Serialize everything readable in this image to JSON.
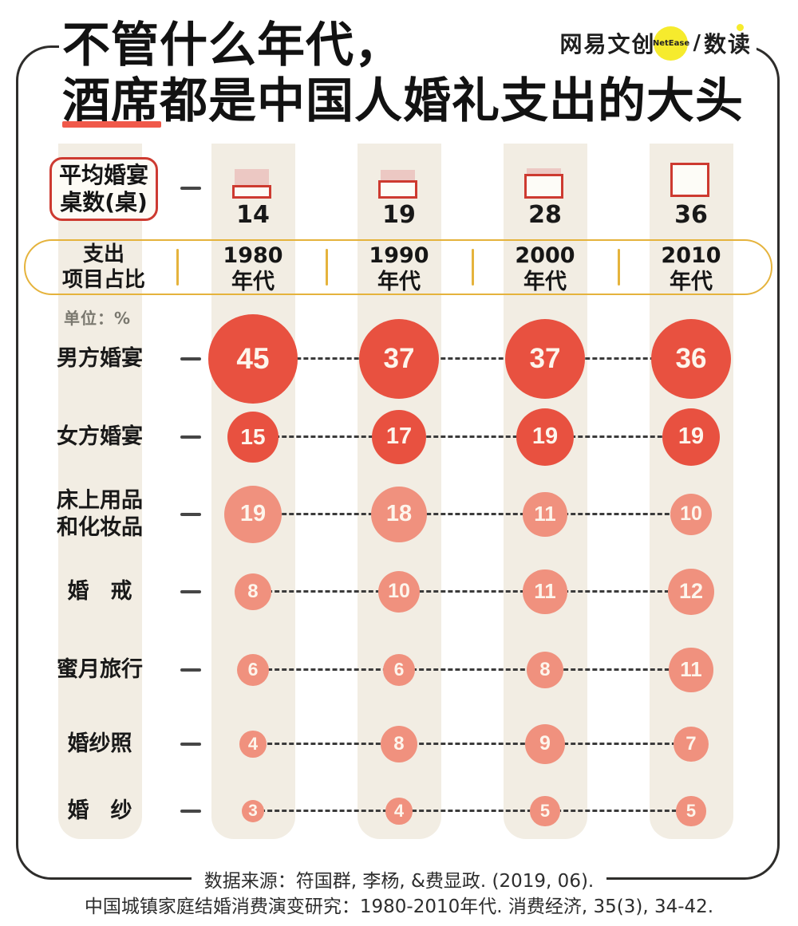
{
  "colors": {
    "page_bg": "#ffffff",
    "band": "#f2ede3",
    "frame": "#2e2d2b",
    "title_text": "#121212",
    "title_underline": "#f0594a",
    "bubble_red": "#e85140",
    "bubble_salmon": "#f0917e",
    "bubble_text": "#fdf5ec",
    "gold": "#e5b33c",
    "box_red": "#cd3a30",
    "icon_pink": "#ecc8c3",
    "logo_yellow": "#f6eb2d",
    "tick": "#464646",
    "unit_text": "#7a786f",
    "source_text": "#2d2d2d"
  },
  "page": {
    "title_line1": "不管什么年代，",
    "title_line2": "酒席都是中国人婚礼支出的大头",
    "underlined_text": "酒席",
    "logo": {
      "brand": "网易文创",
      "badge": "NetEase",
      "divider": "/",
      "product": "数读"
    },
    "source_line1": "数据来源：符国群, 李杨, &费显政. (2019, 06).",
    "source_line2": "中国城镇家庭结婚消费演变研究：1980-2010年代. 消费经济, 35(3), 34-42."
  },
  "chart_data": {
    "type": "bubble",
    "title": "不管什么年代，酒席都是中国人婚礼支出的大头",
    "unit_label": "单位：%",
    "unit": "%",
    "categories": [
      "1980年代",
      "1990年代",
      "2000年代",
      "2010年代"
    ],
    "header_label": {
      "line1": "支出",
      "line2": "项目占比"
    },
    "avg_tables": {
      "label_line1": "平均婚宴",
      "label_line2": "桌数(桌)",
      "values": [
        14,
        19,
        28,
        36
      ]
    },
    "rows": [
      {
        "label": "男方婚宴",
        "values": [
          45,
          37,
          37,
          36
        ],
        "tone": "dark"
      },
      {
        "label": "女方婚宴",
        "values": [
          15,
          17,
          19,
          19
        ],
        "tone": "dark"
      },
      {
        "label": "床上用品\n和化妆品",
        "values": [
          19,
          18,
          11,
          10
        ],
        "tone": "light"
      },
      {
        "label": "婚　戒",
        "values": [
          8,
          10,
          11,
          12
        ],
        "tone": "light"
      },
      {
        "label": "蜜月旅行",
        "values": [
          6,
          6,
          8,
          11
        ],
        "tone": "light"
      },
      {
        "label": "婚纱照",
        "values": [
          4,
          8,
          9,
          7
        ],
        "tone": "light"
      },
      {
        "label": "婚　纱",
        "values": [
          3,
          4,
          5,
          5
        ],
        "tone": "light"
      }
    ]
  }
}
